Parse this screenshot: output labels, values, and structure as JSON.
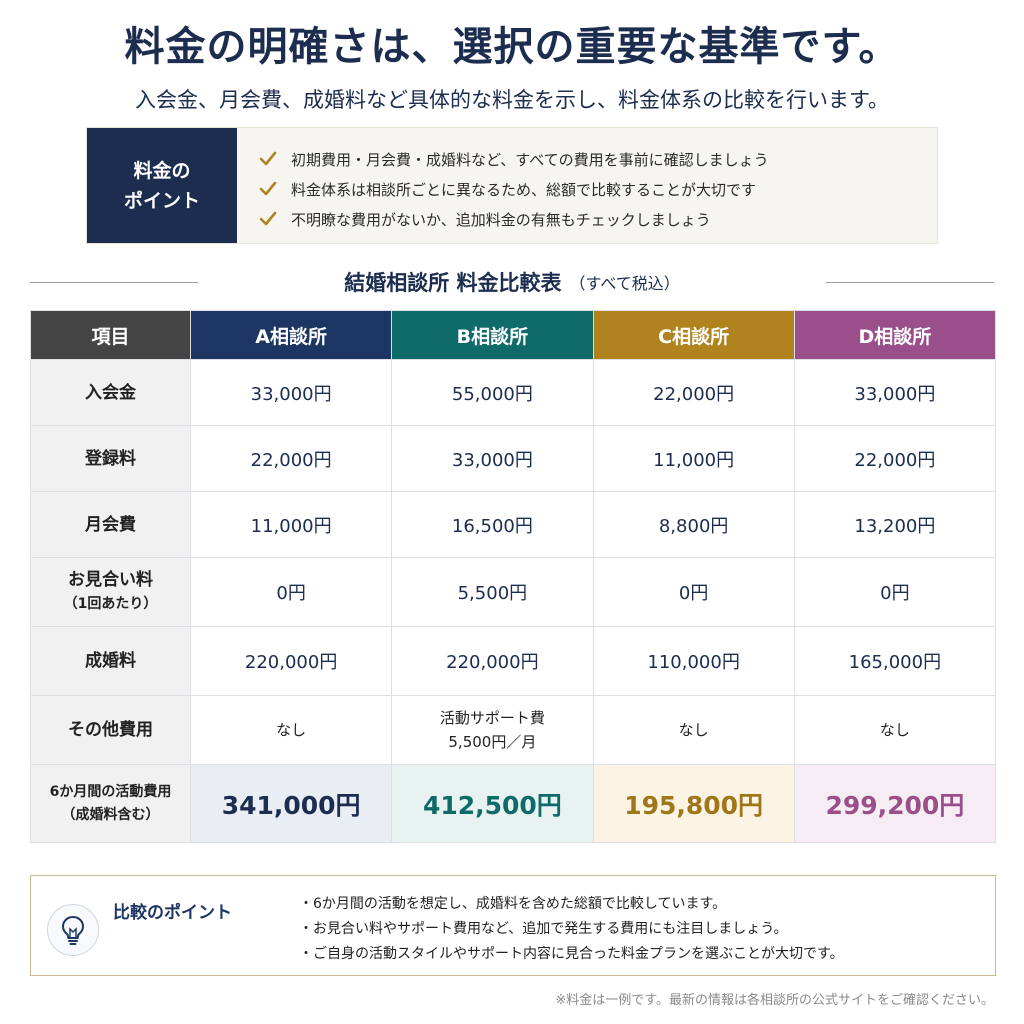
{
  "header": {
    "title": "料金の明確さは、選択の重要な基準です。",
    "subtitle": "入会金、月会費、成婚料など具体的な料金を示し、料金体系の比較を行います。"
  },
  "points": {
    "label_line1": "料金の",
    "label_line2": "ポイント",
    "items": [
      "初期費用・月会費・成婚料など、すべての費用を事前に確認しましょう",
      "料金体系は相談所ごとに異なるため、総額で比較することが大切です",
      "不明瞭な費用がないか、追加料金の有無もチェックしましょう"
    ],
    "check_color": "#b1831f"
  },
  "table": {
    "title": "結婚相談所 料金比較表",
    "note": "（すべて税込）",
    "headers": [
      "項目",
      "A相談所",
      "B相談所",
      "C相談所",
      "D相談所"
    ],
    "rows": [
      {
        "label": "入会金",
        "values": [
          "33,000円",
          "55,000円",
          "22,000円",
          "33,000円"
        ]
      },
      {
        "label": "登録料",
        "values": [
          "22,000円",
          "33,000円",
          "11,000円",
          "22,000円"
        ]
      },
      {
        "label": "月会費",
        "values": [
          "11,000円",
          "16,500円",
          "8,800円",
          "13,200円"
        ]
      },
      {
        "label": "お見合い料",
        "sublabel": "（1回あたり）",
        "values": [
          "0円",
          "5,500円",
          "0円",
          "0円"
        ]
      },
      {
        "label": "成婚料",
        "values": [
          "220,000円",
          "220,000円",
          "110,000円",
          "165,000円"
        ]
      },
      {
        "label": "その他費用",
        "values": [
          "なし",
          "活動サポート費",
          "なし",
          "なし"
        ],
        "b_extra": "5,500円／月"
      }
    ],
    "total": {
      "label_line1": "6か月間の活動費用",
      "label_line2": "（成婚料含む）",
      "values": [
        "341,000円",
        "412,500円",
        "195,800円",
        "299,200円"
      ]
    },
    "colors": {
      "a": "#1c3562",
      "b": "#0f6b6a",
      "c": "#b1831f",
      "d": "#9a4f8b"
    }
  },
  "comparison": {
    "title": "比較のポイント",
    "items": [
      "・6か月間の活動を想定し、成婚料を含めた総額で比較しています。",
      "・お見合い料やサポート費用など、追加で発生する費用にも注目しましょう。",
      "・ご自身の活動スタイルやサポート内容に見合った料金プランを選ぶことが大切です。"
    ]
  },
  "footnote": "※料金は一例です。最新の情報は各相談所の公式サイトをご確認ください。"
}
